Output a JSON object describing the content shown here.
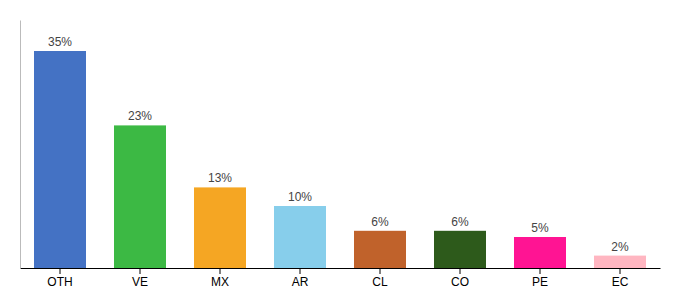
{
  "chart_data": {
    "type": "bar",
    "categories": [
      "OTH",
      "VE",
      "MX",
      "AR",
      "CL",
      "CO",
      "PE",
      "EC"
    ],
    "values": [
      35,
      23,
      13,
      10,
      6,
      6,
      5,
      2
    ],
    "value_labels": [
      "35%",
      "23%",
      "13%",
      "10%",
      "6%",
      "6%",
      "5%",
      "2%"
    ],
    "colors": [
      "#4472c4",
      "#3cb944",
      "#f5a623",
      "#87ceeb",
      "#c0622b",
      "#2d5a1b",
      "#ff1493",
      "#ffb6c1"
    ],
    "ylim": [
      0,
      40
    ],
    "grid": false,
    "data_labels": true,
    "tick_labels": "x"
  }
}
